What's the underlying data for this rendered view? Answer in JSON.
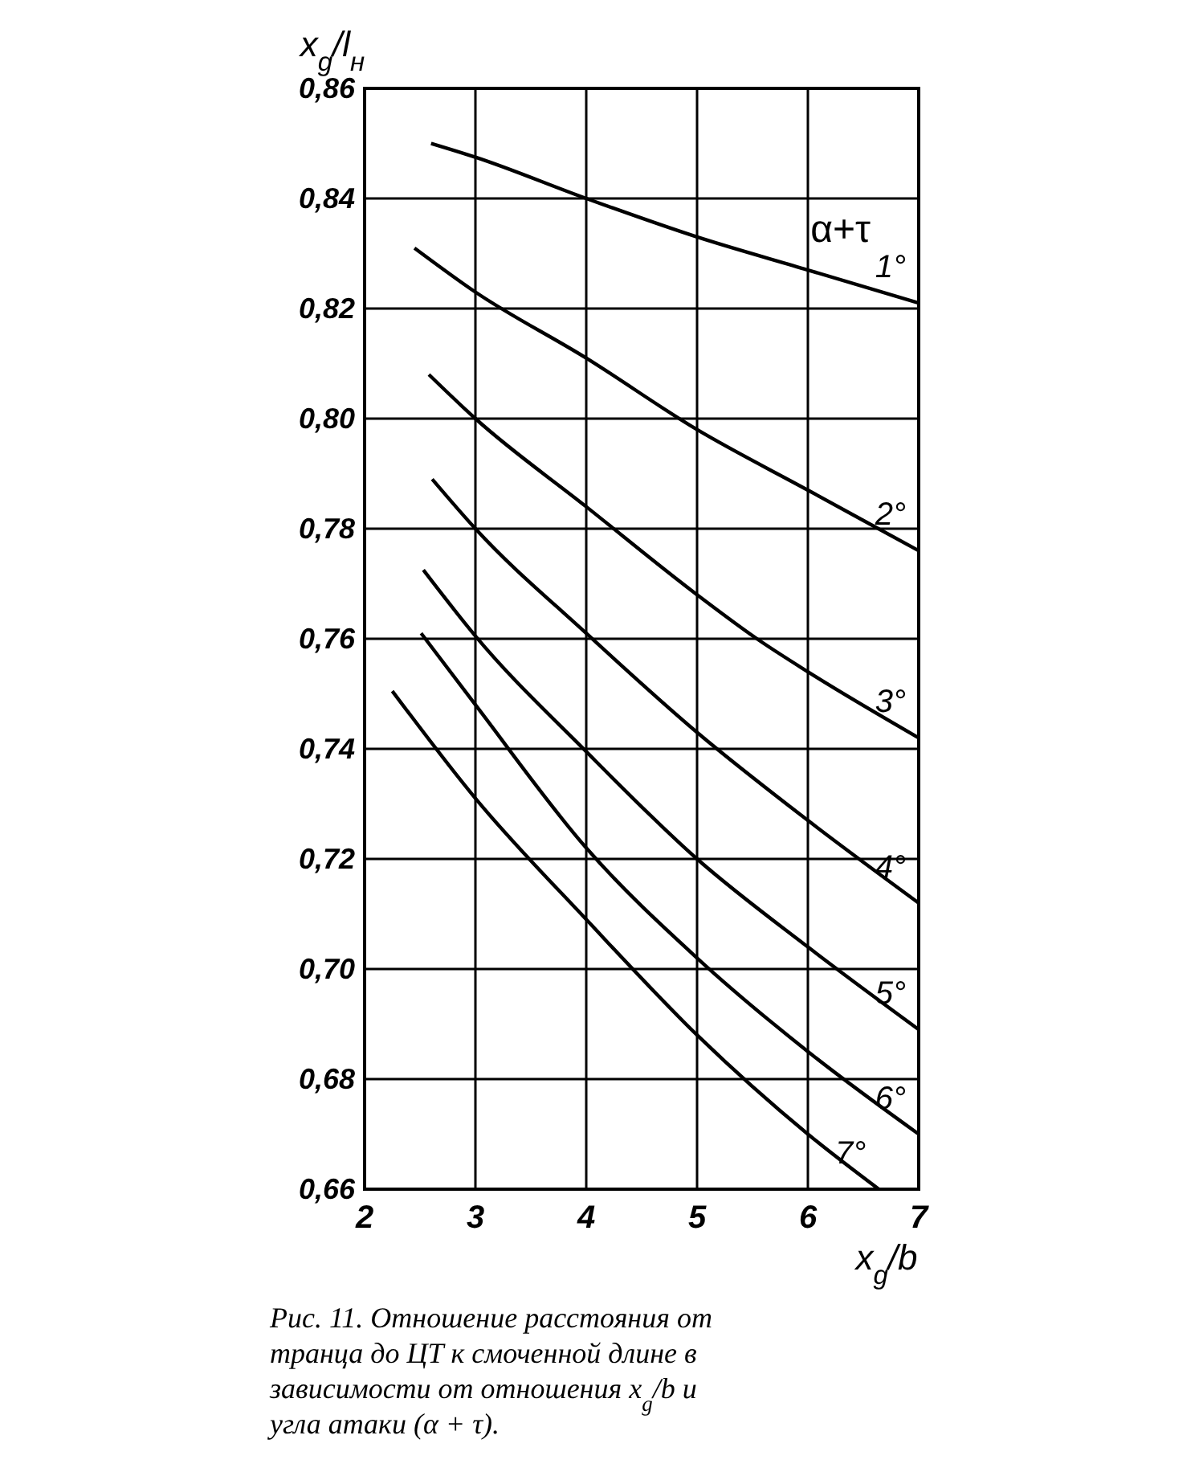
{
  "chart_data": {
    "type": "line",
    "xlabel": "x$_{g}$/b",
    "ylabel": "x$_{g}$/l$_{н}$",
    "legend_title": "α+τ",
    "xlim": [
      2,
      7
    ],
    "ylim": [
      0.66,
      0.86
    ],
    "xticks": [
      2,
      3,
      4,
      5,
      6,
      7
    ],
    "yticks": [
      {
        "value": 0.66,
        "label": "0,66"
      },
      {
        "value": 0.68,
        "label": "0,68"
      },
      {
        "value": 0.7,
        "label": "0,70"
      },
      {
        "value": 0.72,
        "label": "0,72"
      },
      {
        "value": 0.74,
        "label": "0,74"
      },
      {
        "value": 0.76,
        "label": "0,76"
      },
      {
        "value": 0.78,
        "label": "0,78"
      },
      {
        "value": 0.8,
        "label": "0,80"
      },
      {
        "value": 0.82,
        "label": "0,82"
      },
      {
        "value": 0.84,
        "label": "0,84"
      },
      {
        "value": 0.86,
        "label": "0,86"
      }
    ],
    "grid": true,
    "marker": "none",
    "line_style": "solid",
    "series": [
      {
        "name": "1°",
        "color": "#000000",
        "x": [
          2.6,
          3,
          4,
          5,
          6,
          7
        ],
        "values": [
          0.85,
          0.8475,
          0.84,
          0.833,
          0.827,
          0.821
        ]
      },
      {
        "name": "2°",
        "color": "#000000",
        "x": [
          2.45,
          3,
          4,
          5,
          6,
          7
        ],
        "values": [
          0.831,
          0.823,
          0.811,
          0.798,
          0.787,
          0.776
        ]
      },
      {
        "name": "3°",
        "color": "#000000",
        "x": [
          2.58,
          3,
          4,
          5,
          5.54,
          6,
          7
        ],
        "values": [
          0.808,
          0.8,
          0.784,
          0.768,
          0.76,
          0.754,
          0.742
        ]
      },
      {
        "name": "4°",
        "color": "#000000",
        "x": [
          2.61,
          3,
          4,
          5,
          6,
          7
        ],
        "values": [
          0.789,
          0.78,
          0.761,
          0.743,
          0.727,
          0.712
        ]
      },
      {
        "name": "5°",
        "color": "#000000",
        "x": [
          2.53,
          3,
          4,
          5,
          6,
          7
        ],
        "values": [
          0.7725,
          0.7605,
          0.7395,
          0.72,
          0.704,
          0.689
        ]
      },
      {
        "name": "6°",
        "color": "#000000",
        "x": [
          2.51,
          3,
          4,
          5,
          6,
          7
        ],
        "values": [
          0.761,
          0.748,
          0.722,
          0.702,
          0.685,
          0.67
        ]
      },
      {
        "name": "7°",
        "color": "#000000",
        "x": [
          2.25,
          3,
          4,
          5,
          6,
          6.64
        ],
        "values": [
          0.7505,
          0.731,
          0.709,
          0.688,
          0.67,
          0.66
        ]
      }
    ],
    "annotations": [
      "Рис. 11. Отношение расстояния от транца до ЦТ к смоченной длине в зависимости от отношения x$_{g}$/b и угла атаки (α + τ)."
    ]
  }
}
